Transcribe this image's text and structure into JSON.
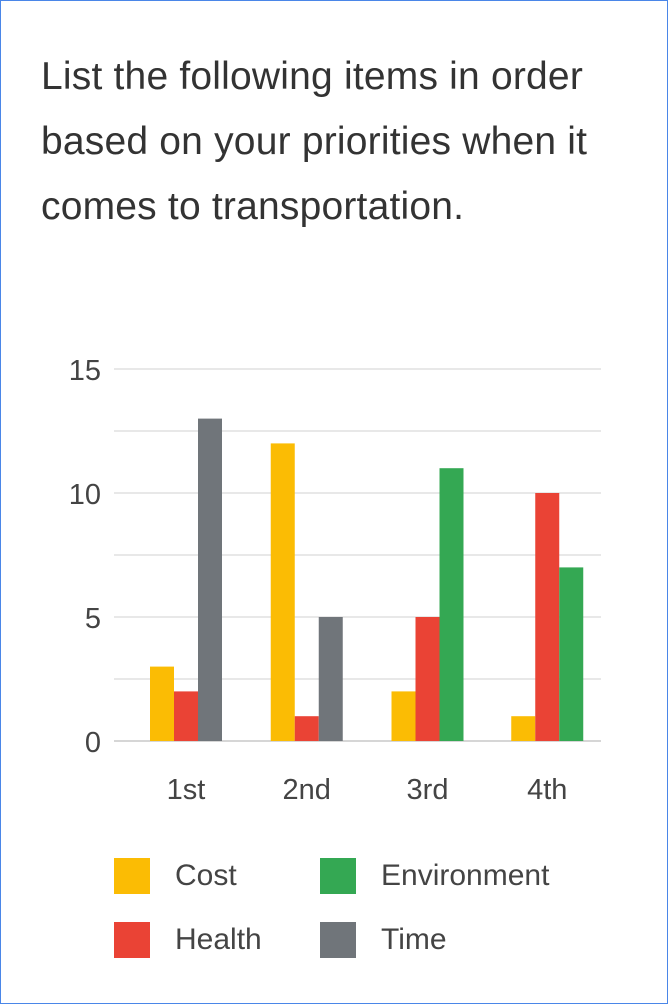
{
  "question": "List the following items in order based on your priorities when it comes to transportation.",
  "chart_data": {
    "type": "bar",
    "title": "List the following items in order based on your priorities when it comes to transportation.",
    "categories": [
      "1st",
      "2nd",
      "3rd",
      "4th"
    ],
    "series": [
      {
        "name": "Cost",
        "color": "#fbbc04",
        "values": [
          3,
          12,
          2,
          1
        ]
      },
      {
        "name": "Health",
        "color": "#ea4335",
        "values": [
          2,
          1,
          5,
          10
        ]
      },
      {
        "name": "Environment",
        "color": "#34a853",
        "values": [
          0,
          0,
          11,
          7
        ]
      },
      {
        "name": "Time",
        "color": "#70757a",
        "values": [
          13,
          5,
          0,
          0
        ]
      }
    ],
    "ylim": [
      0,
      15
    ],
    "yticks": [
      "0",
      "5",
      "10",
      "15"
    ],
    "xlabel": "",
    "ylabel": "",
    "grid": true,
    "legend_position": "bottom"
  },
  "legend": [
    {
      "label": "Cost",
      "color": "#fbbc04"
    },
    {
      "label": "Environment",
      "color": "#34a853"
    },
    {
      "label": "Health",
      "color": "#ea4335"
    },
    {
      "label": "Time",
      "color": "#70757a"
    }
  ],
  "colors": {
    "border": "#4a86e8",
    "grid": "#d9d9d9",
    "text": "#333333"
  }
}
